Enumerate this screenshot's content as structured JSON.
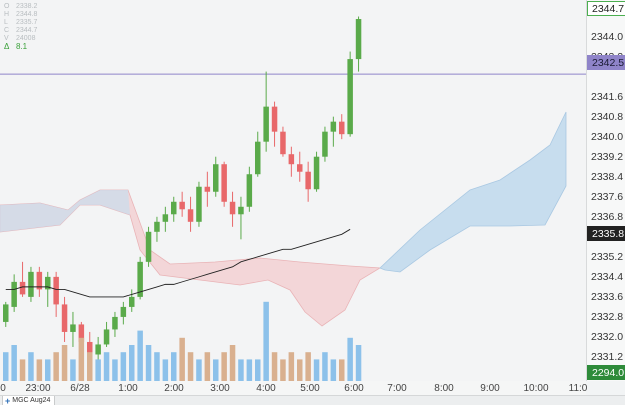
{
  "instrument": {
    "tab_label": "MGC Aug24",
    "add_icon": "plus-icon"
  },
  "ohlc": {
    "open_key": "O",
    "open": "2338.2",
    "high_key": "H",
    "high": "2344.8",
    "low_key": "L",
    "low": "2335.7",
    "close_key": "C",
    "close": "2344.7",
    "volume_key": "V",
    "volume": "24008",
    "delta_key": "Δ",
    "delta": "8.1"
  },
  "price_axis": {
    "ticks": [
      "2344.0",
      "2343.2",
      "2341.6",
      "2340.8",
      "2340.0",
      "2339.2",
      "2338.4",
      "2337.6",
      "2336.8",
      "2335.2",
      "2334.4",
      "2333.6",
      "2332.8",
      "2332.0",
      "2331.2"
    ],
    "badges": [
      {
        "label": "2344.7",
        "bg": "#ffffff",
        "fg": "#222222",
        "border": "#4caf50"
      },
      {
        "label": "2342.5",
        "bg": "#8f84c9",
        "fg": "#1a1a33",
        "border": "#8f84c9"
      },
      {
        "label": "2335.8",
        "bg": "#222222",
        "fg": "#ffffff",
        "border": "#222222"
      },
      {
        "label": "2294.0",
        "bg": "#2e8b3a",
        "fg": "#ffffff",
        "border": "#2e8b3a"
      }
    ]
  },
  "time_axis": {
    "labels": [
      "0",
      "23:00",
      "6/28",
      "1:00",
      "2:00",
      "3:00",
      "4:00",
      "5:00",
      "6:00",
      "7:00",
      "8:00",
      "9:00",
      "10:00",
      "11:0"
    ]
  },
  "colors": {
    "bull": "#5aaa4a",
    "bear": "#e8686a",
    "cloud_bull": "#c7ddee",
    "cloud_bear": "#f3d6d8",
    "vol_bull": "#8cc1ea",
    "vol_bear": "#d9b08f",
    "ma_line": "#222222",
    "ref_line": "#8f84c9"
  },
  "chart_data": {
    "type": "candlestick",
    "y_range": [
      2330.6,
      2345.3
    ],
    "reference_price": 2342.5,
    "candles": [
      [
        2332.6,
        2333.4,
        2332.4,
        2333.3
      ],
      [
        2333.2,
        2334.5,
        2333.0,
        2334.2
      ],
      [
        2334.2,
        2335.0,
        2333.6,
        2333.7
      ],
      [
        2333.6,
        2334.8,
        2333.4,
        2334.6
      ],
      [
        2334.6,
        2334.8,
        2333.6,
        2333.9
      ],
      [
        2333.9,
        2334.6,
        2333.2,
        2334.4
      ],
      [
        2334.4,
        2334.6,
        2332.8,
        2333.3
      ],
      [
        2333.3,
        2333.6,
        2331.8,
        2332.2
      ],
      [
        2332.2,
        2333.0,
        2331.6,
        2332.5
      ],
      [
        2332.5,
        2332.6,
        2331.0,
        2331.8
      ],
      [
        2331.8,
        2332.2,
        2331.1,
        2331.3
      ],
      [
        2331.3,
        2332.0,
        2330.8,
        2331.7
      ],
      [
        2331.7,
        2332.6,
        2331.6,
        2332.3
      ],
      [
        2332.3,
        2333.0,
        2332.0,
        2332.8
      ],
      [
        2332.8,
        2333.4,
        2332.5,
        2333.2
      ],
      [
        2333.2,
        2333.9,
        2333.0,
        2333.6
      ],
      [
        2333.6,
        2335.2,
        2333.5,
        2335.0
      ],
      [
        2335.0,
        2336.4,
        2334.8,
        2336.2
      ],
      [
        2336.2,
        2336.8,
        2335.8,
        2336.6
      ],
      [
        2336.6,
        2337.2,
        2336.2,
        2336.9
      ],
      [
        2336.9,
        2337.6,
        2336.6,
        2337.4
      ],
      [
        2337.4,
        2337.8,
        2336.8,
        2337.1
      ],
      [
        2337.1,
        2337.6,
        2336.2,
        2336.6
      ],
      [
        2336.6,
        2338.2,
        2336.4,
        2338.0
      ],
      [
        2338.0,
        2338.6,
        2337.2,
        2337.8
      ],
      [
        2337.8,
        2339.2,
        2337.6,
        2338.9
      ],
      [
        2338.9,
        2339.0,
        2337.2,
        2337.4
      ],
      [
        2337.4,
        2337.8,
        2336.4,
        2336.9
      ],
      [
        2336.9,
        2337.6,
        2335.9,
        2337.2
      ],
      [
        2337.2,
        2338.8,
        2337.0,
        2338.5
      ],
      [
        2338.5,
        2340.2,
        2338.4,
        2339.8
      ],
      [
        2339.8,
        2342.6,
        2339.4,
        2341.2
      ],
      [
        2341.2,
        2341.4,
        2339.6,
        2340.2
      ],
      [
        2340.2,
        2340.4,
        2339.2,
        2339.3
      ],
      [
        2339.3,
        2339.6,
        2338.4,
        2338.9
      ],
      [
        2338.9,
        2339.4,
        2338.2,
        2338.6
      ],
      [
        2338.6,
        2339.0,
        2337.4,
        2337.9
      ],
      [
        2337.9,
        2339.4,
        2337.8,
        2339.2
      ],
      [
        2339.2,
        2340.4,
        2339.0,
        2340.2
      ],
      [
        2340.2,
        2340.8,
        2339.6,
        2340.6
      ],
      [
        2340.6,
        2340.9,
        2339.9,
        2340.1
      ],
      [
        2340.1,
        2343.4,
        2340.0,
        2343.1
      ],
      [
        2343.1,
        2344.8,
        2342.6,
        2344.7
      ]
    ],
    "volume": [
      4,
      5,
      3,
      4,
      3,
      3,
      4,
      5,
      3,
      6,
      4,
      3,
      4,
      3,
      4,
      5,
      7,
      5,
      4,
      3,
      4,
      6,
      4,
      3,
      4,
      3,
      4,
      5,
      3,
      3,
      3,
      11,
      4,
      3,
      4,
      3,
      4,
      3,
      4,
      3,
      3,
      6,
      5
    ],
    "ma": [
      2333.9,
      2333.9,
      2334.0,
      2334.0,
      2334.0,
      2334.0,
      2333.9,
      2333.9,
      2333.8,
      2333.7,
      2333.6,
      2333.6,
      2333.6,
      2333.6,
      2333.6,
      2333.7,
      2333.8,
      2333.9,
      2334.0,
      2334.1,
      2334.1,
      2334.2,
      2334.3,
      2334.4,
      2334.5,
      2334.6,
      2334.7,
      2334.8,
      2335.0,
      2335.1,
      2335.2,
      2335.3,
      2335.4,
      2335.5,
      2335.5,
      2335.6,
      2335.7,
      2335.8,
      2335.9,
      2336.0,
      2336.1,
      2336.3
    ]
  }
}
